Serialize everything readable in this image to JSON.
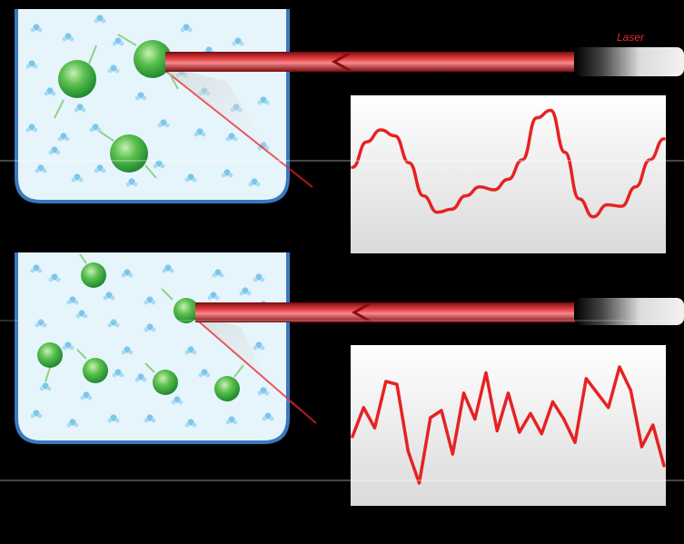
{
  "laser_label": "Laser",
  "colors": {
    "background": "#000000",
    "container_fill": "#e6f5fb",
    "container_stroke": "#3b78c0",
    "particle": "#3eb449",
    "molecule": "#7cc6ea",
    "beam": "#e8262b",
    "trace": "#e62222"
  },
  "panels": [
    {
      "particle_size": "large",
      "fluctuation": "slow",
      "trace_values": [
        0.55,
        0.72,
        0.8,
        0.76,
        0.58,
        0.36,
        0.25,
        0.27,
        0.36,
        0.42,
        0.4,
        0.47,
        0.6,
        0.88,
        0.93,
        0.65,
        0.34,
        0.22,
        0.3,
        0.29,
        0.42,
        0.6,
        0.74
      ]
    },
    {
      "particle_size": "small",
      "fluctuation": "fast",
      "trace_values": [
        0.42,
        0.62,
        0.48,
        0.8,
        0.78,
        0.32,
        0.1,
        0.55,
        0.6,
        0.3,
        0.72,
        0.54,
        0.86,
        0.46,
        0.72,
        0.45,
        0.58,
        0.44,
        0.66,
        0.54,
        0.38,
        0.82,
        0.72,
        0.62,
        0.9,
        0.74,
        0.35,
        0.5,
        0.22
      ]
    }
  ]
}
